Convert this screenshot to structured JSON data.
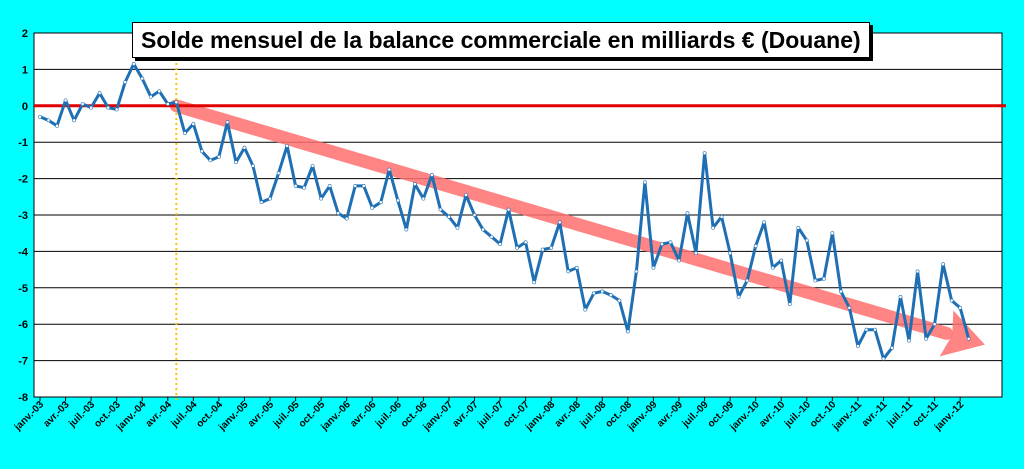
{
  "chart_data": {
    "type": "line",
    "title": "Solde mensuel de la balance commerciale en milliards € (Douane)",
    "xlabel": "",
    "ylabel": "",
    "ylim": [
      -8,
      2
    ],
    "yticks": [
      2,
      1,
      0,
      -1,
      -2,
      -3,
      -4,
      -5,
      -6,
      -7,
      -8
    ],
    "xtick_labels": [
      "janv.-03",
      "avr.-03",
      "juil.-03",
      "oct.-03",
      "janv.-04",
      "avr.-04",
      "juil.-04",
      "oct.-04",
      "janv.-05",
      "avr.-05",
      "juil.-05",
      "oct.-05",
      "janv.-06",
      "avr.-06",
      "juil.-06",
      "oct.-06",
      "janv.-07",
      "avr.-07",
      "juil.-07",
      "oct.-07",
      "janv.-08",
      "avr.-08",
      "juil.-08",
      "oct.-08",
      "janv.-09",
      "avr.-09",
      "juil.-09",
      "oct.-09",
      "janv.-10",
      "avr.-10",
      "juil.-10",
      "oct.-10",
      "janv.-11",
      "avr.-11",
      "juil.-11",
      "oct.-11",
      "janv.-12"
    ],
    "grid": "horizontal",
    "reference_line": {
      "y": 0,
      "color": "#e00000"
    },
    "marker_vline": {
      "at": "mai-04",
      "color": "#ffc000",
      "style": "dotted"
    },
    "trend_arrow": {
      "from": {
        "month_index": 16,
        "value": 0
      },
      "to": {
        "month_index": 110,
        "value": -6.5
      },
      "color": "#ff7070"
    },
    "series": [
      {
        "color": "#1f6fb4",
        "values": [
          -0.3,
          -0.4,
          -0.55,
          0.15,
          -0.4,
          0.05,
          -0.05,
          0.35,
          -0.05,
          -0.1,
          0.65,
          1.15,
          0.75,
          0.25,
          0.4,
          0.05,
          0.1,
          -0.75,
          -0.5,
          -1.25,
          -1.5,
          -1.4,
          -0.45,
          -1.55,
          -1.15,
          -1.65,
          -2.65,
          -2.55,
          -1.85,
          -1.1,
          -2.2,
          -2.25,
          -1.65,
          -2.55,
          -2.2,
          -2.95,
          -3.1,
          -2.2,
          -2.2,
          -2.8,
          -2.65,
          -1.75,
          -2.6,
          -3.4,
          -2.15,
          -2.55,
          -1.9,
          -2.85,
          -3.05,
          -3.35,
          -2.45,
          -3.0,
          -3.4,
          -3.6,
          -3.8,
          -2.85,
          -3.9,
          -3.75,
          -4.85,
          -3.95,
          -3.9,
          -3.2,
          -4.55,
          -4.45,
          -5.6,
          -5.15,
          -5.1,
          -5.2,
          -5.35,
          -6.2,
          -4.55,
          -2.1,
          -4.45,
          -3.8,
          -3.75,
          -4.25,
          -2.95,
          -4.05,
          -1.3,
          -3.35,
          -3.05,
          -4.05,
          -5.25,
          -4.8,
          -3.85,
          -3.2,
          -4.45,
          -4.25,
          -5.45,
          -3.35,
          -3.7,
          -4.8,
          -4.75,
          -3.5,
          -5.1,
          -5.55,
          -6.6,
          -6.15,
          -6.15,
          -6.95,
          -6.65,
          -5.25,
          -6.45,
          -4.55,
          -6.4,
          -6.0,
          -4.35,
          -5.35,
          -5.55,
          -6.4
        ]
      }
    ]
  }
}
